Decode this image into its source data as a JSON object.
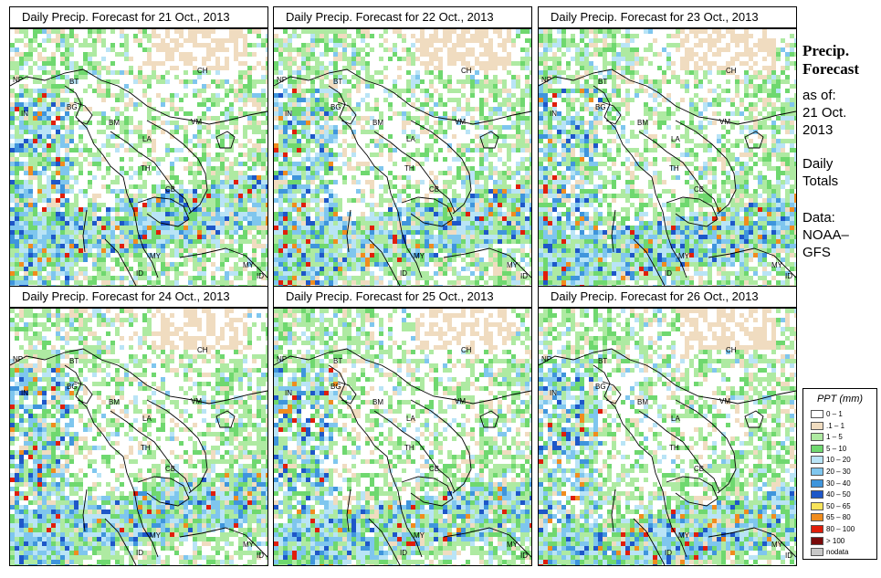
{
  "panels": [
    {
      "title": "Daily Precip. Forecast for  21 Oct., 2013",
      "seed": 11
    },
    {
      "title": "Daily Precip. Forecast for  22 Oct., 2013",
      "seed": 22
    },
    {
      "title": "Daily Precip. Forecast for  23 Oct., 2013",
      "seed": 33
    },
    {
      "title": "Daily Precip. Forecast for  24 Oct., 2013",
      "seed": 44
    },
    {
      "title": "Daily Precip. Forecast for  25 Oct., 2013",
      "seed": 55
    },
    {
      "title": "Daily Precip. Forecast for  26 Oct., 2013",
      "seed": 66
    }
  ],
  "region_labels": [
    "CH",
    "NP",
    "BT",
    "IN",
    "BG",
    "BM",
    "VM",
    "LA",
    "TH",
    "CB",
    "MY",
    "MY",
    "ID",
    "ID"
  ],
  "sidebar": {
    "title_line1": "Precip.",
    "title_line2": "Forecast",
    "asof": "as of:",
    "date_line1": "21 Oct.",
    "date_line2": "2013",
    "totals_line1": "Daily",
    "totals_line2": "Totals",
    "data_line1": "Data:",
    "data_line2": "NOAA–",
    "data_line3": "GFS"
  },
  "legend": {
    "title": "PPT (mm)",
    "items": [
      {
        "label": "0 – 1",
        "color": "#ffffff"
      },
      {
        "label": ".1 – 1",
        "color": "#f0dcc0"
      },
      {
        "label": "1 – 5",
        "color": "#aeeaa2"
      },
      {
        "label": "5 – 10",
        "color": "#6fd86f"
      },
      {
        "label": "10 – 20",
        "color": "#b9e4f6"
      },
      {
        "label": "20 – 30",
        "color": "#7fc6ee"
      },
      {
        "label": "30 – 40",
        "color": "#3f95dc"
      },
      {
        "label": "40 – 50",
        "color": "#1e57c8"
      },
      {
        "label": "50 – 65",
        "color": "#f7e35a"
      },
      {
        "label": "65 – 80",
        "color": "#f08c1e"
      },
      {
        "label": "80 – 100",
        "color": "#e01e0a"
      },
      {
        "label": "> 100",
        "color": "#7a0a0a"
      },
      {
        "label": "nodata",
        "color": "#c8c8c8"
      }
    ]
  }
}
